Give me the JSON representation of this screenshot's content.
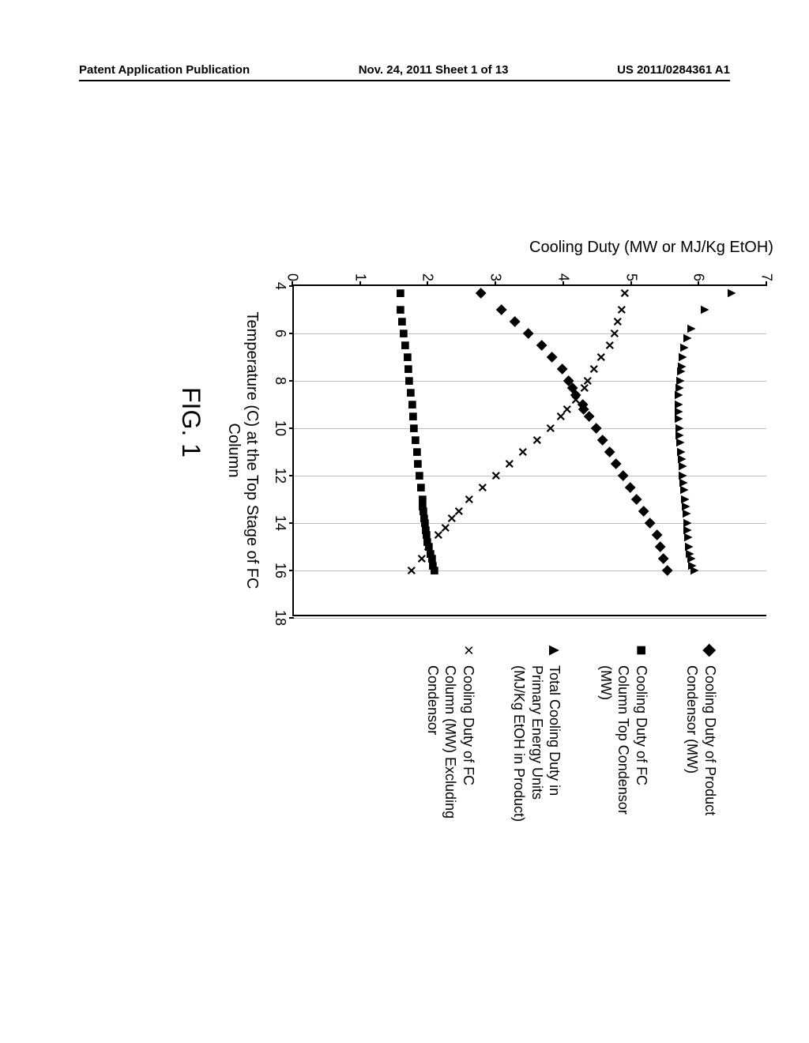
{
  "header": {
    "left": "Patent Application Publication",
    "center": "Nov. 24, 2011  Sheet 1 of 13",
    "right": "US 2011/0284361 A1"
  },
  "figure_label": "FIG. 1",
  "axes": {
    "y_label": "Cooling Duty (MW or MJ/Kg EtOH)",
    "x_label": "Temperature (C) at the Top Stage of FC Column",
    "xlim": [
      4,
      18
    ],
    "ylim": [
      0,
      7
    ],
    "xticks": [
      4,
      6,
      8,
      10,
      12,
      14,
      16,
      18
    ],
    "yticks": [
      0,
      1,
      2,
      3,
      4,
      5,
      6,
      7
    ],
    "gridlines_x": [
      6,
      8,
      10,
      12,
      14,
      16,
      18
    ],
    "border_color": "#000000",
    "grid_color": "#c0c0c0",
    "background": "#ffffff",
    "tick_fontsize": 18,
    "label_fontsize": 20
  },
  "legend": {
    "items": [
      {
        "marker": "◆",
        "label": "Cooling Duty of Product Condensor (MW)"
      },
      {
        "marker": "■",
        "label": "Cooling Duty of FC Column Top Condensor (MW)"
      },
      {
        "marker": "▲",
        "label": "Total Cooling Duty in Primary Energy Units (MJ/Kg EtOH in Product)"
      },
      {
        "marker": "×",
        "label": "Cooling Duty of FC Column (MW) Excluding Condensor"
      }
    ],
    "fontsize": 18
  },
  "series": {
    "diamond": {
      "symbol": "◆",
      "points": [
        [
          4.3,
          2.8
        ],
        [
          5.0,
          3.1
        ],
        [
          5.5,
          3.3
        ],
        [
          6.0,
          3.5
        ],
        [
          6.5,
          3.7
        ],
        [
          7.0,
          3.85
        ],
        [
          7.5,
          4.0
        ],
        [
          8.0,
          4.1
        ],
        [
          8.3,
          4.15
        ],
        [
          8.6,
          4.2
        ],
        [
          9.0,
          4.3
        ],
        [
          9.2,
          4.32
        ],
        [
          9.5,
          4.4
        ],
        [
          10.0,
          4.5
        ],
        [
          10.5,
          4.6
        ],
        [
          11.0,
          4.7
        ],
        [
          11.5,
          4.8
        ],
        [
          12.0,
          4.9
        ],
        [
          12.5,
          5.0
        ],
        [
          13.0,
          5.1
        ],
        [
          13.5,
          5.2
        ],
        [
          14.0,
          5.3
        ],
        [
          14.5,
          5.4
        ],
        [
          15.0,
          5.45
        ],
        [
          15.5,
          5.5
        ],
        [
          16.0,
          5.55
        ]
      ]
    },
    "square": {
      "symbol": "■",
      "points": [
        [
          4.3,
          1.6
        ],
        [
          5.0,
          1.6
        ],
        [
          5.5,
          1.62
        ],
        [
          6.0,
          1.65
        ],
        [
          6.5,
          1.67
        ],
        [
          7.0,
          1.7
        ],
        [
          7.5,
          1.72
        ],
        [
          8.0,
          1.73
        ],
        [
          8.5,
          1.75
        ],
        [
          9.0,
          1.77
        ],
        [
          9.5,
          1.78
        ],
        [
          10.0,
          1.8
        ],
        [
          10.5,
          1.82
        ],
        [
          11.0,
          1.84
        ],
        [
          11.5,
          1.86
        ],
        [
          12.0,
          1.88
        ],
        [
          12.5,
          1.9
        ],
        [
          13.0,
          1.92
        ],
        [
          13.3,
          1.93
        ],
        [
          13.5,
          1.94
        ],
        [
          13.8,
          1.95
        ],
        [
          14.0,
          1.96
        ],
        [
          14.3,
          1.97
        ],
        [
          14.5,
          1.98
        ],
        [
          14.8,
          2.0
        ],
        [
          15.0,
          2.02
        ],
        [
          15.3,
          2.04
        ],
        [
          15.5,
          2.06
        ],
        [
          15.8,
          2.08
        ],
        [
          16.0,
          2.1
        ]
      ]
    },
    "triangle": {
      "symbol": "▲",
      "points": [
        [
          4.3,
          6.5
        ],
        [
          5.0,
          6.1
        ],
        [
          5.8,
          5.9
        ],
        [
          6.2,
          5.85
        ],
        [
          6.6,
          5.8
        ],
        [
          7.0,
          5.78
        ],
        [
          7.4,
          5.76
        ],
        [
          7.6,
          5.75
        ],
        [
          8.0,
          5.74
        ],
        [
          8.3,
          5.73
        ],
        [
          8.6,
          5.72
        ],
        [
          9.0,
          5.72
        ],
        [
          9.3,
          5.72
        ],
        [
          9.6,
          5.72
        ],
        [
          10.0,
          5.73
        ],
        [
          10.3,
          5.73
        ],
        [
          10.6,
          5.74
        ],
        [
          11.0,
          5.75
        ],
        [
          11.3,
          5.76
        ],
        [
          11.6,
          5.77
        ],
        [
          12.0,
          5.78
        ],
        [
          12.3,
          5.79
        ],
        [
          12.6,
          5.8
        ],
        [
          13.0,
          5.81
        ],
        [
          13.3,
          5.82
        ],
        [
          13.6,
          5.83
        ],
        [
          14.0,
          5.84
        ],
        [
          14.3,
          5.85
        ],
        [
          14.6,
          5.86
        ],
        [
          15.0,
          5.87
        ],
        [
          15.3,
          5.88
        ],
        [
          15.5,
          5.9
        ],
        [
          15.8,
          5.92
        ],
        [
          16.0,
          5.95
        ]
      ]
    },
    "cross": {
      "symbol": "×",
      "points": [
        [
          4.3,
          4.9
        ],
        [
          5.0,
          4.85
        ],
        [
          5.5,
          4.8
        ],
        [
          6.0,
          4.75
        ],
        [
          6.5,
          4.68
        ],
        [
          7.0,
          4.55
        ],
        [
          7.5,
          4.45
        ],
        [
          8.0,
          4.35
        ],
        [
          8.3,
          4.3
        ],
        [
          8.8,
          4.18
        ],
        [
          9.2,
          4.05
        ],
        [
          9.5,
          3.95
        ],
        [
          10.0,
          3.8
        ],
        [
          10.5,
          3.6
        ],
        [
          11.0,
          3.4
        ],
        [
          11.5,
          3.2
        ],
        [
          12.0,
          3.0
        ],
        [
          12.5,
          2.8
        ],
        [
          13.0,
          2.6
        ],
        [
          13.5,
          2.45
        ],
        [
          13.8,
          2.35
        ],
        [
          14.2,
          2.25
        ],
        [
          14.5,
          2.15
        ],
        [
          15.0,
          2.0
        ],
        [
          15.5,
          1.9
        ],
        [
          16.0,
          1.75
        ]
      ]
    }
  },
  "marker_style": {
    "color": "#000000",
    "fontsize": 19
  }
}
